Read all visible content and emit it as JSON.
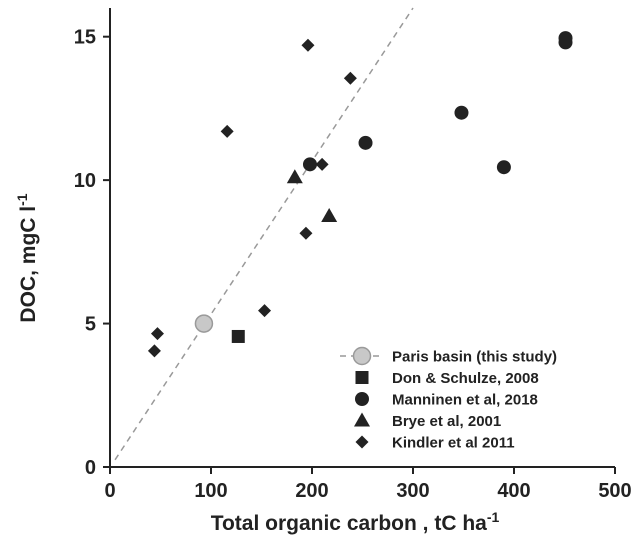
{
  "chart_data": {
    "type": "scatter",
    "xlabel": "Total organic carbon , tC ha",
    "xlabel_sup": "-1",
    "ylabel": "DOC, mgC l",
    "ylabel_sup": "-1",
    "xlim": [
      0,
      500
    ],
    "ylim": [
      0,
      16
    ],
    "xticks": [
      0,
      100,
      200,
      300,
      400,
      500
    ],
    "yticks": [
      0,
      5,
      10,
      15
    ],
    "grid": false,
    "legend_position": "bottom-right",
    "series": [
      {
        "name": "Paris basin (this study)",
        "marker": "circle-light",
        "color": "#c8c8c8",
        "stroke": "#9a9a9a",
        "points": [
          [
            93,
            5.0
          ]
        ],
        "trendline": {
          "style": "dashed",
          "color": "#999999",
          "x": [
            5,
            300
          ],
          "y": [
            0.25,
            16.0
          ]
        }
      },
      {
        "name": "Don & Schulze, 2008",
        "marker": "square",
        "color": "#222222",
        "points": [
          [
            127,
            4.55
          ]
        ]
      },
      {
        "name": "Manninen et al, 2018",
        "marker": "circle",
        "color": "#222222",
        "points": [
          [
            198,
            10.55
          ],
          [
            253,
            11.3
          ],
          [
            348,
            12.35
          ],
          [
            390,
            10.45
          ],
          [
            451,
            14.8
          ],
          [
            451,
            14.95
          ]
        ]
      },
      {
        "name": "Brye et al, 2001",
        "marker": "triangle",
        "color": "#222222",
        "points": [
          [
            183,
            10.1
          ],
          [
            217,
            8.75
          ]
        ]
      },
      {
        "name": "Kindler et al 2011",
        "marker": "diamond",
        "color": "#222222",
        "points": [
          [
            44,
            4.05
          ],
          [
            47,
            4.65
          ],
          [
            116,
            11.7
          ],
          [
            153,
            5.45
          ],
          [
            194,
            8.15
          ],
          [
            196,
            14.7
          ],
          [
            210,
            10.55
          ],
          [
            238,
            13.55
          ]
        ]
      }
    ]
  }
}
